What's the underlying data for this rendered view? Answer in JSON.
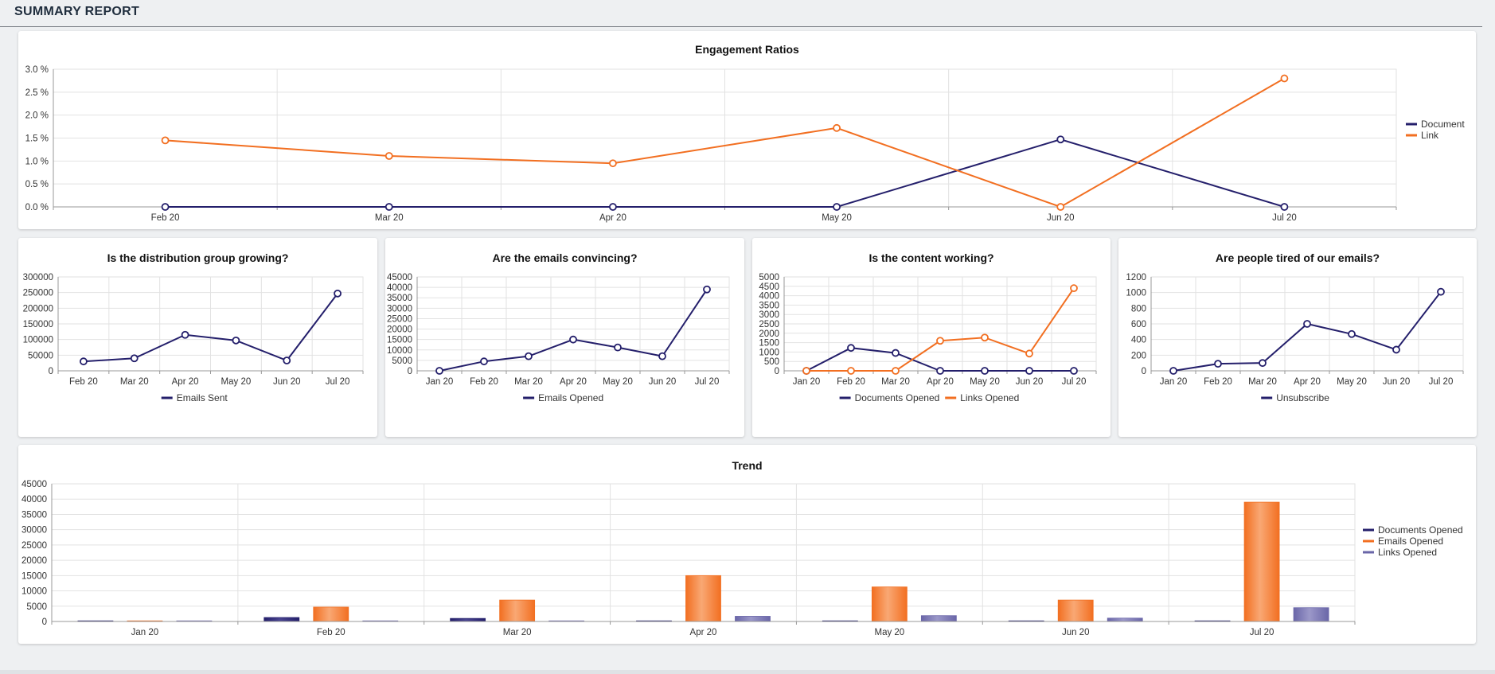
{
  "page": {
    "title": "SUMMARY REPORT"
  },
  "colors": {
    "navy": "#241f6b",
    "orange": "#f26f21",
    "purple": "#6a66a8"
  },
  "chart_data": [
    {
      "id": "engagement",
      "type": "line",
      "title": "Engagement Ratios",
      "categories": [
        "Feb 20",
        "Mar 20",
        "Apr 20",
        "May 20",
        "Jun 20",
        "Jul 20"
      ],
      "ylim": [
        0,
        3.0
      ],
      "yticks": [
        "0.0 %",
        "0.5 %",
        "1.0 %",
        "1.5 %",
        "2.0 %",
        "2.5 %",
        "3.0 %"
      ],
      "legend": "right",
      "grid": true,
      "series": [
        {
          "name": "Document",
          "color": "#241f6b",
          "values": [
            0,
            0,
            0,
            0,
            1.47,
            0
          ]
        },
        {
          "name": "Link",
          "color": "#f26f21",
          "values": [
            1.45,
            1.11,
            0.95,
            1.72,
            0,
            2.8
          ]
        }
      ]
    },
    {
      "id": "growth",
      "type": "line",
      "title": "Is the distribution group growing?",
      "categories": [
        "Feb 20",
        "Mar 20",
        "Apr 20",
        "May 20",
        "Jun 20",
        "Jul 20"
      ],
      "ylim": [
        0,
        300000
      ],
      "yticks": [
        "0",
        "50000",
        "100000",
        "150000",
        "200000",
        "250000",
        "300000"
      ],
      "legend": "bottom",
      "grid": true,
      "series": [
        {
          "name": "Emails Sent",
          "color": "#241f6b",
          "values": [
            30000,
            40000,
            115000,
            97000,
            33000,
            247000
          ]
        }
      ]
    },
    {
      "id": "convincing",
      "type": "line",
      "title": "Are the emails convincing?",
      "categories": [
        "Jan 20",
        "Feb 20",
        "Mar 20",
        "Apr 20",
        "May 20",
        "Jun 20",
        "Jul 20"
      ],
      "ylim": [
        0,
        45000
      ],
      "yticks": [
        "0",
        "5000",
        "10000",
        "15000",
        "20000",
        "25000",
        "30000",
        "35000",
        "40000",
        "45000"
      ],
      "legend": "bottom",
      "grid": true,
      "series": [
        {
          "name": "Emails Opened",
          "color": "#241f6b",
          "values": [
            0,
            4500,
            7000,
            15000,
            11200,
            7000,
            39000
          ]
        }
      ]
    },
    {
      "id": "content",
      "type": "line",
      "title": "Is the content working?",
      "categories": [
        "Jan 20",
        "Feb 20",
        "Mar 20",
        "Apr 20",
        "May 20",
        "Jun 20",
        "Jul 20"
      ],
      "ylim": [
        0,
        5000
      ],
      "yticks": [
        "0",
        "500",
        "1000",
        "1500",
        "2000",
        "2500",
        "3000",
        "3500",
        "4000",
        "4500",
        "5000"
      ],
      "legend": "bottom",
      "grid": true,
      "series": [
        {
          "name": "Documents Opened",
          "color": "#241f6b",
          "values": [
            0,
            1220,
            950,
            0,
            0,
            0,
            0
          ]
        },
        {
          "name": "Links Opened",
          "color": "#f26f21",
          "values": [
            0,
            0,
            0,
            1600,
            1770,
            920,
            4400
          ]
        }
      ]
    },
    {
      "id": "tired",
      "type": "line",
      "title": "Are people tired of our emails?",
      "categories": [
        "Jan 20",
        "Feb 20",
        "Mar 20",
        "Apr 20",
        "May 20",
        "Jun 20",
        "Jul 20"
      ],
      "ylim": [
        0,
        1200
      ],
      "yticks": [
        "0",
        "200",
        "400",
        "600",
        "800",
        "1000",
        "1200"
      ],
      "legend": "bottom",
      "grid": true,
      "series": [
        {
          "name": "Unsubscribe",
          "color": "#241f6b",
          "values": [
            0,
            90,
            100,
            600,
            470,
            270,
            1010
          ]
        }
      ]
    },
    {
      "id": "trend",
      "type": "bar",
      "title": "Trend",
      "categories": [
        "Jan 20",
        "Feb 20",
        "Mar 20",
        "Apr 20",
        "May 20",
        "Jun 20",
        "Jul 20"
      ],
      "ylim": [
        0,
        45000
      ],
      "yticks": [
        "0",
        "5000",
        "10000",
        "15000",
        "20000",
        "25000",
        "30000",
        "35000",
        "40000",
        "45000"
      ],
      "legend": "right",
      "grid": true,
      "series": [
        {
          "name": "Documents Opened",
          "color": "#241f6b",
          "values": [
            0,
            1300,
            1000,
            0,
            0,
            0,
            0
          ]
        },
        {
          "name": "Emails Opened",
          "color": "#f26f21",
          "values": [
            0,
            4700,
            7000,
            15000,
            11300,
            7000,
            39000
          ]
        },
        {
          "name": "Links Opened",
          "color": "#6a66a8",
          "values": [
            0,
            0,
            0,
            1700,
            1900,
            1100,
            4500
          ]
        }
      ]
    }
  ]
}
